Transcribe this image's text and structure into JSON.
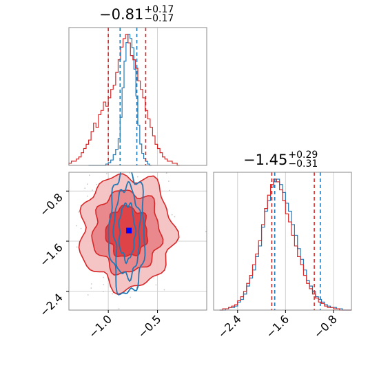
{
  "chart_data": [
    {
      "type": "histogram",
      "panel": "top-left 1D marginal (parameter 1)",
      "title": {
        "value": "−0.81",
        "upper": "+0.17",
        "lower": "−0.17"
      },
      "xlim": [
        -1.4,
        -0.0
      ],
      "series": [
        {
          "name": "",
          "color": "#1f77b4",
          "bin_edges": [
            -1.2,
            -1.175,
            -1.15,
            -1.125,
            -1.1,
            -1.075,
            -1.05,
            -1.025,
            -1.0,
            -0.975,
            -0.95,
            -0.925,
            -0.9,
            -0.88,
            -0.86,
            -0.84,
            -0.82,
            -0.8,
            -0.78,
            -0.76,
            -0.74,
            -0.72,
            -0.7,
            -0.68,
            -0.66,
            -0.64,
            -0.62,
            -0.6,
            -0.58,
            -0.56
          ],
          "counts": [
            0,
            0,
            0,
            0,
            0,
            0,
            0,
            1,
            2,
            4,
            8,
            12,
            20,
            36,
            58,
            78,
            92,
            98,
            95,
            88,
            72,
            52,
            30,
            16,
            9,
            5,
            3,
            1,
            0
          ]
        },
        {
          "name": "",
          "color": "#d62728",
          "bin_edges": [
            -1.4,
            -1.375,
            -1.35,
            -1.325,
            -1.3,
            -1.275,
            -1.25,
            -1.225,
            -1.2,
            -1.175,
            -1.15,
            -1.125,
            -1.1,
            -1.075,
            -1.05,
            -1.025,
            -1.0,
            -0.975,
            -0.95,
            -0.925,
            -0.9,
            -0.875,
            -0.85,
            -0.825,
            -0.8,
            -0.775,
            -0.75,
            -0.725,
            -0.7,
            -0.675,
            -0.65,
            -0.625,
            -0.6,
            -0.575,
            -0.55,
            -0.525,
            -0.5,
            -0.475,
            -0.45,
            -0.425,
            -0.4,
            -0.375,
            -0.35,
            -0.325,
            -0.3,
            -0.275
          ],
          "counts": [
            1,
            2,
            2,
            3,
            4,
            6,
            8,
            10,
            12,
            16,
            20,
            18,
            24,
            26,
            30,
            28,
            32,
            36,
            38,
            44,
            50,
            56,
            60,
            62,
            58,
            52,
            50,
            46,
            40,
            36,
            32,
            26,
            22,
            18,
            14,
            10,
            8,
            6,
            4,
            3,
            2,
            2,
            1,
            1,
            0
          ]
        }
      ],
      "quantile_lines": [
        {
          "color": "#d62728",
          "x": [
            -1.0,
            -0.62
          ]
        },
        {
          "color": "#1f77b4",
          "x": [
            -0.88,
            -0.71
          ]
        }
      ]
    },
    {
      "type": "histogram",
      "panel": "bottom-right 1D marginal (parameter 2)",
      "title": {
        "value": "−1.45",
        "upper": "+0.29",
        "lower": "−0.31"
      },
      "xlim": [
        -2.8,
        -0.5
      ],
      "xticks": [
        "−2.4",
        "−1.6",
        "−0.8"
      ],
      "series": [
        {
          "name": "",
          "color": "#1f77b4",
          "bin_edges": [
            -2.7,
            -2.65,
            -2.6,
            -2.55,
            -2.5,
            -2.45,
            -2.4,
            -2.35,
            -2.3,
            -2.25,
            -2.2,
            -2.15,
            -2.1,
            -2.05,
            -2.0,
            -1.95,
            -1.9,
            -1.85,
            -1.8,
            -1.75,
            -1.7,
            -1.65,
            -1.6,
            -1.55,
            -1.5,
            -1.45,
            -1.4,
            -1.35,
            -1.3,
            -1.25,
            -1.2,
            -1.15,
            -1.1,
            -1.05,
            -1.0,
            -0.95,
            -0.9,
            -0.85,
            -0.8,
            -0.75,
            -0.7,
            -0.65,
            -0.6,
            -0.55,
            -0.5
          ],
          "counts": [
            0,
            0,
            1,
            2,
            2,
            3,
            6,
            8,
            12,
            18,
            24,
            30,
            40,
            48,
            62,
            74,
            82,
            92,
            96,
            98,
            94,
            88,
            80,
            74,
            64,
            56,
            46,
            38,
            30,
            22,
            18,
            14,
            10,
            8,
            6,
            4,
            3,
            2,
            2,
            1,
            1,
            0,
            0,
            0
          ]
        },
        {
          "name": "",
          "color": "#d62728",
          "bin_edges": [
            -2.7,
            -2.65,
            -2.6,
            -2.55,
            -2.5,
            -2.45,
            -2.4,
            -2.35,
            -2.3,
            -2.25,
            -2.2,
            -2.15,
            -2.1,
            -2.05,
            -2.0,
            -1.95,
            -1.9,
            -1.85,
            -1.8,
            -1.75,
            -1.7,
            -1.65,
            -1.6,
            -1.55,
            -1.5,
            -1.45,
            -1.4,
            -1.35,
            -1.3,
            -1.25,
            -1.2,
            -1.15,
            -1.1,
            -1.05,
            -1.0,
            -0.95,
            -0.9,
            -0.85,
            -0.8,
            -0.75,
            -0.7,
            -0.65,
            -0.6,
            -0.55,
            -0.5
          ],
          "counts": [
            0,
            1,
            1,
            2,
            3,
            4,
            7,
            10,
            14,
            20,
            26,
            34,
            42,
            52,
            64,
            76,
            86,
            94,
            98,
            96,
            90,
            82,
            72,
            66,
            56,
            48,
            40,
            34,
            26,
            20,
            16,
            12,
            9,
            6,
            5,
            3,
            2,
            2,
            1,
            1,
            0,
            0,
            0,
            0
          ]
        }
      ],
      "quantile_lines": [
        {
          "color": "#d62728",
          "x": [
            -1.83,
            -1.12
          ]
        },
        {
          "color": "#1f77b4",
          "x": [
            -1.78,
            -1.02
          ]
        }
      ]
    },
    {
      "type": "contour",
      "panel": "bottom-left 2D joint (parameter 1 vs parameter 2)",
      "xlim": [
        -1.4,
        -0.0
      ],
      "ylim": [
        -2.7,
        -0.5
      ],
      "xticks": [
        "−1.0",
        "−0.5"
      ],
      "yticks": [
        "−0.8",
        "−1.6",
        "−2.4"
      ],
      "red_distribution": {
        "center": [
          -0.81,
          -1.45
        ],
        "sigma": [
          0.22,
          0.42
        ],
        "levels": 3,
        "color": "#d62728"
      },
      "blue_distribution": {
        "center": [
          -0.81,
          -1.45
        ],
        "sigma": [
          0.09,
          0.5
        ],
        "levels": 3,
        "color": "#1f77b4"
      },
      "marker": {
        "x": -0.79,
        "y": -1.43,
        "color": "#0000ff",
        "shape": "square"
      }
    }
  ]
}
